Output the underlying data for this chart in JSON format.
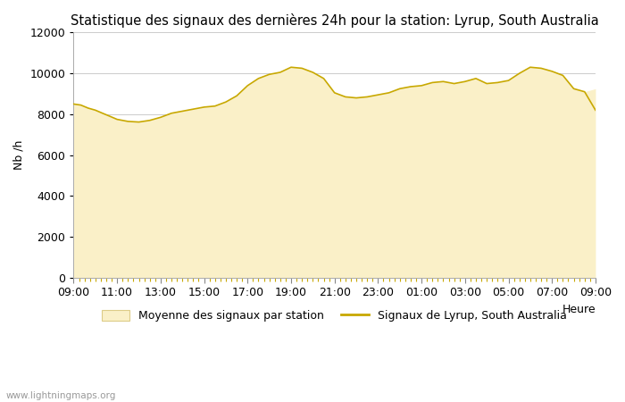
{
  "title": "Statistique des signaux des dernières 24h pour la station: Lyrup, South Australia",
  "xlabel": "Heure",
  "ylabel": "Nb /h",
  "xlim": [
    0,
    24
  ],
  "ylim": [
    0,
    12000
  ],
  "yticks": [
    0,
    2000,
    4000,
    6000,
    8000,
    10000,
    12000
  ],
  "xtick_labels": [
    "09:00",
    "11:00",
    "13:00",
    "15:00",
    "17:00",
    "19:00",
    "21:00",
    "23:00",
    "01:00",
    "03:00",
    "05:00",
    "07:00",
    "09:00"
  ],
  "fill_color": "#FAF0C8",
  "line_color": "#C8A800",
  "bg_color": "#FFFFFF",
  "watermark": "www.lightningmaps.org",
  "legend_fill_label": "Moyenne des signaux par station",
  "legend_line_label": "Signaux de Lyrup, South Australia",
  "x_values": [
    0,
    0.33,
    0.67,
    1.0,
    1.33,
    1.67,
    2.0,
    2.5,
    3.0,
    3.5,
    4.0,
    4.5,
    5.0,
    5.5,
    6.0,
    6.5,
    7.0,
    7.5,
    8.0,
    8.5,
    9.0,
    9.5,
    10.0,
    10.5,
    11.0,
    11.5,
    12.0,
    12.5,
    13.0,
    13.5,
    14.0,
    14.5,
    15.0,
    15.5,
    16.0,
    16.5,
    17.0,
    17.5,
    18.0,
    18.5,
    19.0,
    19.5,
    20.0,
    20.5,
    21.0,
    21.5,
    22.0,
    22.5,
    23.0,
    23.5,
    24.0
  ],
  "y_values": [
    8500,
    8450,
    8300,
    8200,
    8050,
    7900,
    7750,
    7650,
    7620,
    7700,
    7850,
    8050,
    8150,
    8250,
    8350,
    8400,
    8600,
    8900,
    9400,
    9750,
    9950,
    10050,
    10300,
    10250,
    10050,
    9750,
    9050,
    8850,
    8800,
    8850,
    8950,
    9050,
    9250,
    9350,
    9400,
    9550,
    9600,
    9500,
    9600,
    9750,
    9500,
    9550,
    9650,
    10000,
    10300,
    10250,
    10100,
    9900,
    9250,
    9100,
    9250
  ],
  "y_lyrup": [
    8500,
    8450,
    8300,
    8200,
    8050,
    7900,
    7750,
    7650,
    7620,
    7700,
    7850,
    8050,
    8150,
    8250,
    8350,
    8400,
    8600,
    8900,
    9400,
    9750,
    9950,
    10050,
    10300,
    10250,
    10050,
    9750,
    9050,
    8850,
    8800,
    8850,
    8950,
    9050,
    9250,
    9350,
    9400,
    9550,
    9600,
    9500,
    9600,
    9750,
    9500,
    9550,
    9650,
    10000,
    10300,
    10250,
    10100,
    9900,
    9250,
    9100,
    8200
  ],
  "grid_color": "#CCCCCC",
  "title_fontsize": 10.5,
  "axis_fontsize": 9,
  "tick_fontsize": 9,
  "minor_tick_color": "#C8A800"
}
